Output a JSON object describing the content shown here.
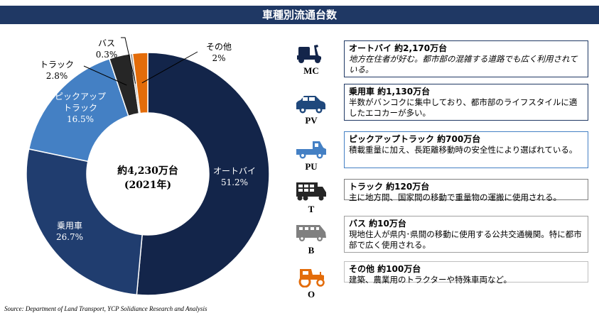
{
  "title": "車種別流通台数",
  "chart_data": {
    "type": "pie",
    "style": "donut",
    "center_label": [
      "約4,230万台",
      "(2021年)"
    ],
    "slices": [
      {
        "name": "オートバイ",
        "value": 51.2,
        "label": "51.2%",
        "color": "#13254a"
      },
      {
        "name": "乗用車",
        "value": 26.7,
        "label": "26.7%",
        "color": "#203d6f"
      },
      {
        "name": "ピックアップトラック",
        "value": 16.5,
        "label": "16.5%",
        "color": "#4480c4"
      },
      {
        "name": "トラック",
        "value": 2.8,
        "label": "2.8%",
        "color": "#262626"
      },
      {
        "name": "バス",
        "value": 0.3,
        "label": "0.3%",
        "color": "#8a8a8a"
      },
      {
        "name": "その他",
        "value": 2,
        "label": "2%",
        "color": "#e36c0a"
      }
    ]
  },
  "categories": [
    {
      "icon": "motorcycle-icon",
      "code": "MC",
      "heading": "オートバイ 約2,170万台",
      "text": "地方在住者が好む。都市部の混雑する道路でも広く利用されている。",
      "color": "#13254a",
      "border": "#1f3864",
      "italic": true
    },
    {
      "icon": "car-icon",
      "code": "PV",
      "heading": "乗用車 約1,130万台",
      "text": "半数がバンコクに集中しており、都市部のライフスタイルに適したエコカーが多い。",
      "color": "#1f487c",
      "border": "#1f3864"
    },
    {
      "icon": "pickup-icon",
      "code": "PU",
      "heading": "ピックアップトラック 約700万台",
      "text": "積載重量に加え、長距離移動時の安全性により選ばれている。",
      "color": "#4480c4",
      "border": "#4480c4"
    },
    {
      "icon": "truck-icon",
      "code": "T",
      "heading": "トラック 約120万台",
      "text": "主に地方間、国家間の移動で重量物の運搬に使用される。",
      "color": "#262626",
      "border": "#808080"
    },
    {
      "icon": "bus-icon",
      "code": "B",
      "heading": "バス 約10万台",
      "text": "現地住人が県内･県間の移動に使用する公共交通機関。特に都市部で広く使用される。",
      "color": "#808080",
      "border": "#a0a0a0"
    },
    {
      "icon": "tractor-icon",
      "code": "O",
      "heading": "その他 約100万台",
      "text": "建築、農業用のトラクターや特殊車両など。",
      "color": "#e36c0a",
      "border": "#bfbfbf"
    }
  ],
  "source": "Source: Department of Land Transport, YCP Solidiance Research and Analysis"
}
